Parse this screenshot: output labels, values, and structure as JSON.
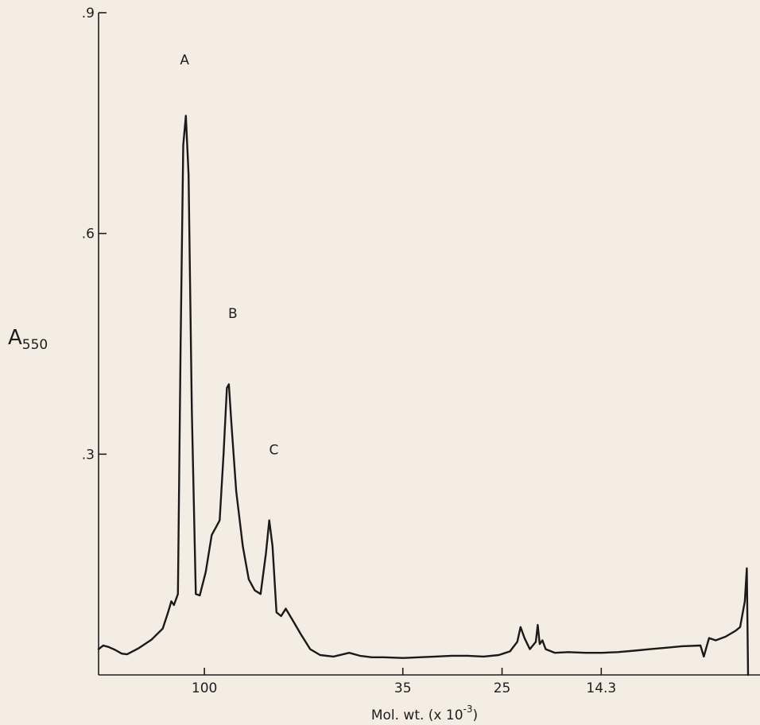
{
  "chart_data": {
    "type": "line",
    "title": "",
    "ylabel": {
      "base": "A",
      "subscript": "550"
    },
    "xlabel": {
      "base": "Mol. wt. (x 10",
      "superscript": "-3",
      "suffix": ")"
    },
    "ylim": [
      0,
      0.9
    ],
    "yticks": [
      {
        "value": 0.3,
        "label": ".3"
      },
      {
        "value": 0.6,
        "label": ".6"
      },
      {
        "value": 0.9,
        "label": ".9"
      }
    ],
    "xlim": [
      0,
      100
    ],
    "xticks": [
      {
        "value": 16,
        "label": "100"
      },
      {
        "value": 46,
        "label": "35"
      },
      {
        "value": 61,
        "label": "25"
      },
      {
        "value": 76,
        "label": "14.3"
      }
    ],
    "peak_labels": [
      {
        "text": "A",
        "x": 13,
        "y": 0.83
      },
      {
        "text": "B",
        "x": 20.3,
        "y": 0.485
      },
      {
        "text": "C",
        "x": 26.5,
        "y": 0.3
      }
    ],
    "series": [
      {
        "points": [
          [
            0,
            0.035
          ],
          [
            0.7,
            0.04
          ],
          [
            1.5,
            0.038
          ],
          [
            2.5,
            0.034
          ],
          [
            3.5,
            0.029
          ],
          [
            4.3,
            0.028
          ],
          [
            6,
            0.036
          ],
          [
            8,
            0.048
          ],
          [
            9.7,
            0.063
          ],
          [
            10.5,
            0.085
          ],
          [
            11,
            0.1
          ],
          [
            11.4,
            0.095
          ],
          [
            12,
            0.11
          ],
          [
            12.4,
            0.45
          ],
          [
            12.8,
            0.72
          ],
          [
            13.2,
            0.76
          ],
          [
            13.6,
            0.68
          ],
          [
            14.1,
            0.36
          ],
          [
            14.7,
            0.11
          ],
          [
            15.3,
            0.108
          ],
          [
            16.2,
            0.14
          ],
          [
            17.1,
            0.19
          ],
          [
            17.7,
            0.2
          ],
          [
            18.3,
            0.21
          ],
          [
            18.9,
            0.3
          ],
          [
            19.4,
            0.39
          ],
          [
            19.7,
            0.395
          ],
          [
            20.1,
            0.34
          ],
          [
            20.8,
            0.25
          ],
          [
            21.8,
            0.175
          ],
          [
            22.7,
            0.13
          ],
          [
            23.6,
            0.115
          ],
          [
            24.5,
            0.11
          ],
          [
            25.3,
            0.165
          ],
          [
            25.8,
            0.21
          ],
          [
            26.3,
            0.175
          ],
          [
            26.9,
            0.085
          ],
          [
            27.6,
            0.08
          ],
          [
            28.3,
            0.09
          ],
          [
            29.3,
            0.075
          ],
          [
            30.6,
            0.055
          ],
          [
            32,
            0.035
          ],
          [
            33.5,
            0.027
          ],
          [
            35.5,
            0.025
          ],
          [
            37.9,
            0.03
          ],
          [
            39.5,
            0.026
          ],
          [
            41.3,
            0.024
          ],
          [
            43.1,
            0.024
          ],
          [
            46,
            0.023
          ],
          [
            48.5,
            0.024
          ],
          [
            50.9,
            0.025
          ],
          [
            53.4,
            0.026
          ],
          [
            55.8,
            0.026
          ],
          [
            58.2,
            0.025
          ],
          [
            60.5,
            0.027
          ],
          [
            62.2,
            0.032
          ],
          [
            63.3,
            0.045
          ],
          [
            63.8,
            0.065
          ],
          [
            64.4,
            0.05
          ],
          [
            65.2,
            0.035
          ],
          [
            66.1,
            0.045
          ],
          [
            66.4,
            0.068
          ],
          [
            66.7,
            0.042
          ],
          [
            67.1,
            0.047
          ],
          [
            67.6,
            0.035
          ],
          [
            69,
            0.03
          ],
          [
            71,
            0.031
          ],
          [
            73.6,
            0.03
          ],
          [
            76.1,
            0.03
          ],
          [
            78.5,
            0.031
          ],
          [
            81,
            0.033
          ],
          [
            83.4,
            0.035
          ],
          [
            85.8,
            0.037
          ],
          [
            88.2,
            0.039
          ],
          [
            91,
            0.04
          ],
          [
            91.5,
            0.025
          ],
          [
            92.3,
            0.05
          ],
          [
            93.3,
            0.047
          ],
          [
            94.8,
            0.052
          ],
          [
            96.3,
            0.06
          ],
          [
            97,
            0.065
          ],
          [
            97.7,
            0.1
          ],
          [
            98,
            0.145
          ],
          [
            98.2,
            0
          ],
          [
            98.2,
            -0.01
          ]
        ]
      }
    ]
  }
}
